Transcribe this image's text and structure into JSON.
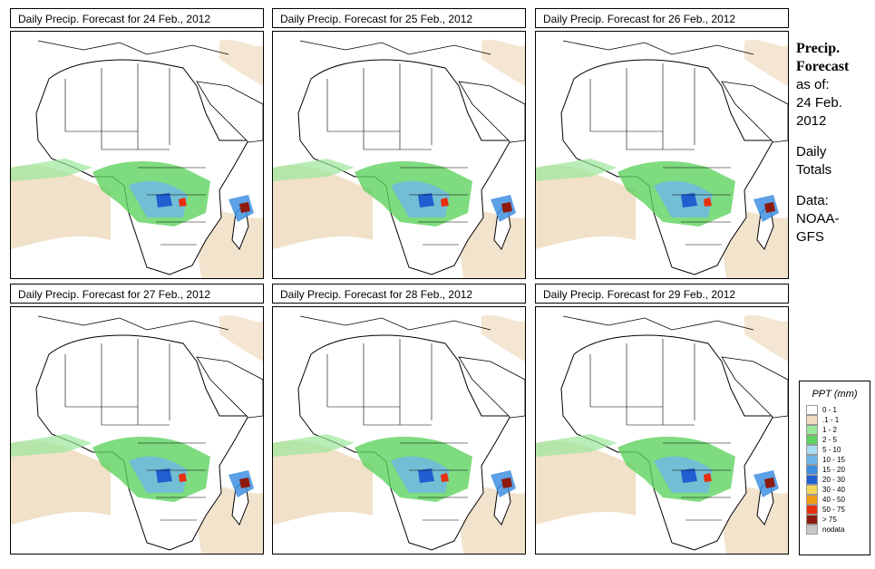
{
  "panels": [
    {
      "title": "Daily Precip. Forecast for  24 Feb., 2012"
    },
    {
      "title": "Daily Precip. Forecast for  25 Feb., 2012"
    },
    {
      "title": "Daily Precip. Forecast for  26 Feb., 2012"
    },
    {
      "title": "Daily Precip. Forecast for  27 Feb., 2012"
    },
    {
      "title": "Daily Precip. Forecast for  28 Feb., 2012"
    },
    {
      "title": "Daily Precip. Forecast for  29 Feb., 2012"
    }
  ],
  "sidebar": {
    "heading_line1": "Precip.",
    "heading_line2": "Forecast",
    "asof_line1": "as of:",
    "asof_line2": "24 Feb.",
    "asof_line3": "2012",
    "daily_line1": "Daily",
    "daily_line2": "Totals",
    "data_line1": "Data:",
    "data_line2": "NOAA-",
    "data_line3": "GFS"
  },
  "legend": {
    "title": "PPT (mm)",
    "items": [
      {
        "label": "0 - 1",
        "color": "#ffffff"
      },
      {
        "label": ".1 - 1",
        "color": "#efdcc0"
      },
      {
        "label": "1 - 2",
        "color": "#9be79b"
      },
      {
        "label": "2 - 5",
        "color": "#5fd25f"
      },
      {
        "label": "5 - 10",
        "color": "#a8dcf0"
      },
      {
        "label": "10 - 15",
        "color": "#6fb7ea"
      },
      {
        "label": "15 - 20",
        "color": "#3f8fe0"
      },
      {
        "label": "20 - 30",
        "color": "#1f5fd0"
      },
      {
        "label": "30 - 40",
        "color": "#f6d65a"
      },
      {
        "label": "40 - 50",
        "color": "#f39c1a"
      },
      {
        "label": "50 - 75",
        "color": "#e8300f"
      },
      {
        "label": "> 75",
        "color": "#8e1a0e"
      },
      {
        "label": "nodata",
        "color": "#c8c8c8"
      }
    ]
  }
}
